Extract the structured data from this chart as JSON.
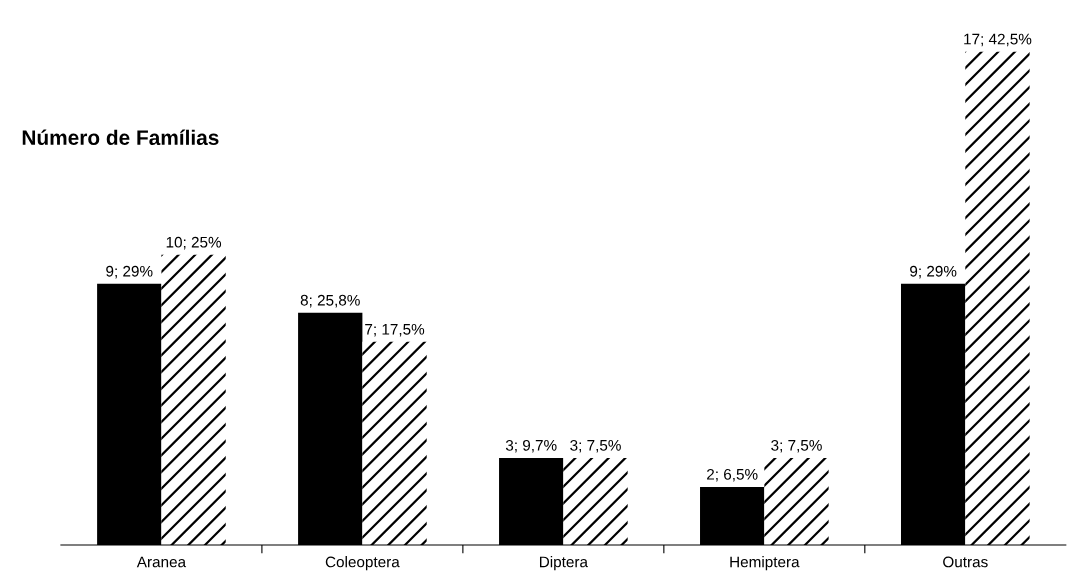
{
  "chart_data": {
    "type": "bar",
    "title": "Número de Famílias",
    "categories": [
      "Aranea",
      "Coleoptera",
      "Diptera",
      "Hemiptera",
      "Outras"
    ],
    "series": [
      {
        "color": "#000000",
        "values": [
          9,
          8,
          3,
          2,
          9
        ],
        "value_labels": [
          "9; 29%",
          "8; 25,8%",
          "3; 9,7%",
          "2; 6,5%",
          "9; 29%"
        ]
      },
      {
        "color": "#ffffff",
        "values": [
          10,
          7,
          3,
          3,
          17
        ],
        "value_labels": [
          "10; 25%",
          "7; 17,5%",
          "3; 7,5%",
          "3; 7,5%",
          "17; 42,5%"
        ]
      }
    ],
    "tick_labels": "x"
  }
}
